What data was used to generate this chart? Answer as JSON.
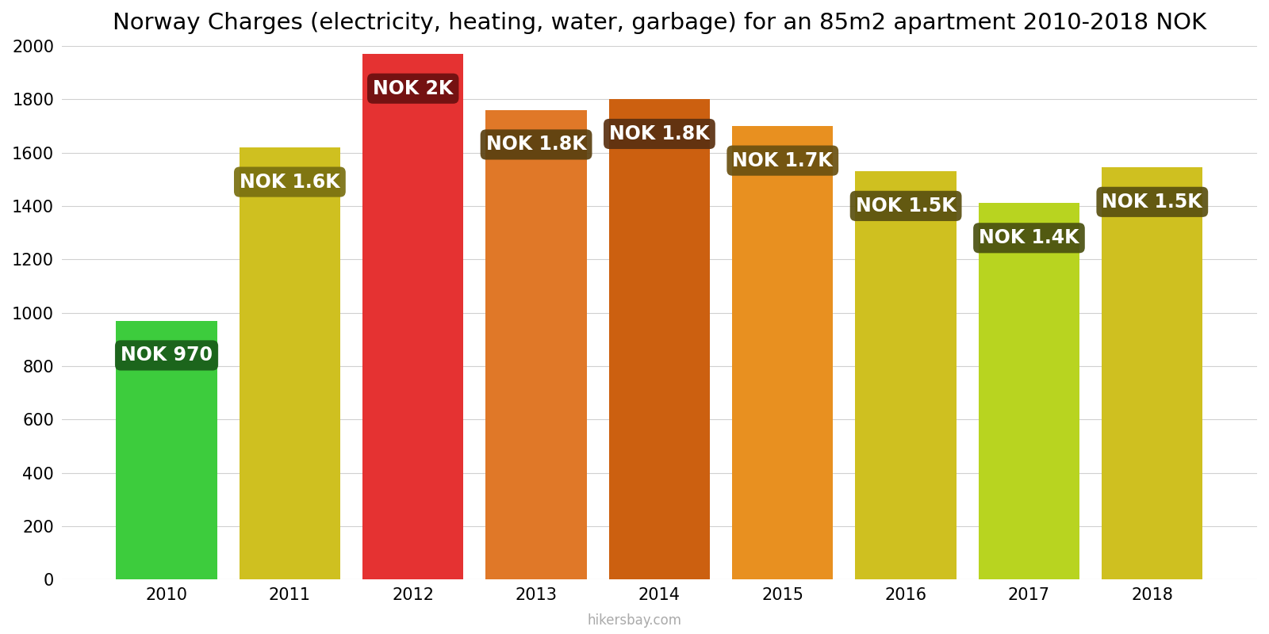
{
  "title": "Norway Charges (electricity, heating, water, garbage) for an 85m2 apartment 2010-2018 NOK",
  "years": [
    2010,
    2011,
    2012,
    2013,
    2014,
    2015,
    2016,
    2017,
    2018
  ],
  "values": [
    970,
    1620,
    1970,
    1760,
    1800,
    1700,
    1530,
    1410,
    1545
  ],
  "labels": [
    "NOK 970",
    "NOK 1.6K",
    "NOK 2K",
    "NOK 1.8K",
    "NOK 1.8K",
    "NOK 1.7K",
    "NOK 1.5K",
    "NOK 1.4K",
    "NOK 1.5K"
  ],
  "bar_colors": [
    "#3dcc3d",
    "#cfc020",
    "#e53232",
    "#e07828",
    "#cc6010",
    "#e89020",
    "#cfc020",
    "#b8d420",
    "#cfc020"
  ],
  "label_box_colors": [
    "#1a5c1a",
    "#7a7010",
    "#6b1010",
    "#5a4010",
    "#5a3010",
    "#6a5010",
    "#5a5010",
    "#4a5010",
    "#5a5010"
  ],
  "ylim": [
    0,
    2000
  ],
  "yticks": [
    0,
    200,
    400,
    600,
    800,
    1000,
    1200,
    1400,
    1600,
    1800,
    2000
  ],
  "background_color": "#ffffff",
  "label_text_color": "#ffffff",
  "label_fontsize": 17,
  "title_fontsize": 21,
  "tick_fontsize": 15,
  "bar_width": 0.82,
  "watermark": "hikersbay.com"
}
